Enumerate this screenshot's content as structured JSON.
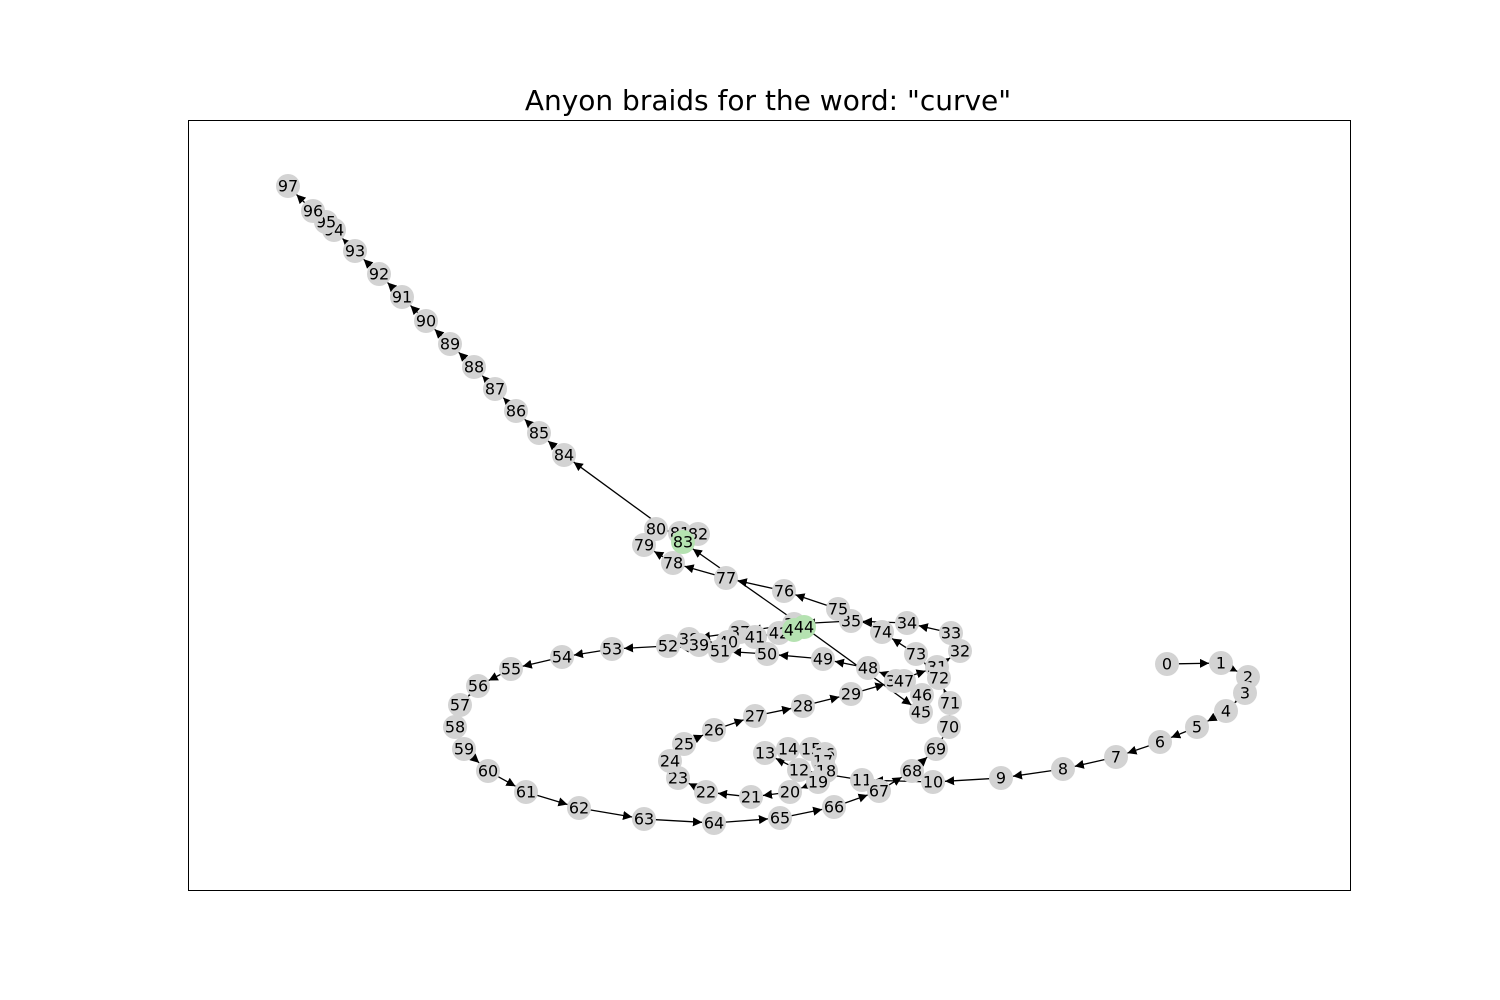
{
  "title": "Anyon braids for the word: \"curve\"",
  "colors": {
    "node": "#d3d3d3",
    "highlight": "#b5e2b1",
    "edge": "#000000",
    "frame": "#000000"
  },
  "highlighted_nodes": [
    "43",
    "44",
    "83"
  ],
  "nodes": [
    {
      "id": "0",
      "label": "0"
    },
    {
      "id": "1",
      "label": "1"
    },
    {
      "id": "2",
      "label": "2"
    },
    {
      "id": "3",
      "label": "3"
    },
    {
      "id": "4",
      "label": "4"
    },
    {
      "id": "5",
      "label": "5"
    },
    {
      "id": "6",
      "label": "6"
    },
    {
      "id": "7",
      "label": "7"
    },
    {
      "id": "8",
      "label": "8"
    },
    {
      "id": "9",
      "label": "9"
    },
    {
      "id": "10",
      "label": "10"
    },
    {
      "id": "11",
      "label": "11"
    },
    {
      "id": "12",
      "label": "12"
    },
    {
      "id": "13",
      "label": "13"
    },
    {
      "id": "14",
      "label": "14"
    },
    {
      "id": "15",
      "label": "15"
    },
    {
      "id": "16",
      "label": "16"
    },
    {
      "id": "17",
      "label": "17"
    },
    {
      "id": "18",
      "label": "18"
    },
    {
      "id": "19",
      "label": "19"
    },
    {
      "id": "20",
      "label": "20"
    },
    {
      "id": "21",
      "label": "21"
    },
    {
      "id": "22",
      "label": "22"
    },
    {
      "id": "23",
      "label": "23"
    },
    {
      "id": "24",
      "label": "24"
    },
    {
      "id": "25",
      "label": "25"
    },
    {
      "id": "26",
      "label": "26"
    },
    {
      "id": "27",
      "label": "27"
    },
    {
      "id": "28",
      "label": "28"
    },
    {
      "id": "29",
      "label": "29"
    },
    {
      "id": "30",
      "label": "30"
    },
    {
      "id": "31",
      "label": "31"
    },
    {
      "id": "32",
      "label": "32"
    },
    {
      "id": "33",
      "label": "33"
    },
    {
      "id": "34",
      "label": "34"
    },
    {
      "id": "35",
      "label": "35"
    },
    {
      "id": "36",
      "label": "36"
    },
    {
      "id": "37",
      "label": "37"
    },
    {
      "id": "38",
      "label": "38"
    },
    {
      "id": "39",
      "label": "39"
    },
    {
      "id": "40",
      "label": "40"
    },
    {
      "id": "41",
      "label": "41"
    },
    {
      "id": "42",
      "label": "42"
    },
    {
      "id": "43",
      "label": "43"
    },
    {
      "id": "44",
      "label": "44"
    },
    {
      "id": "45",
      "label": "45"
    },
    {
      "id": "46",
      "label": "46"
    },
    {
      "id": "47",
      "label": "47"
    },
    {
      "id": "48",
      "label": "48"
    },
    {
      "id": "49",
      "label": "49"
    },
    {
      "id": "50",
      "label": "50"
    },
    {
      "id": "51",
      "label": "51"
    },
    {
      "id": "52",
      "label": "52"
    },
    {
      "id": "53",
      "label": "53"
    },
    {
      "id": "54",
      "label": "54"
    },
    {
      "id": "55",
      "label": "55"
    },
    {
      "id": "56",
      "label": "56"
    },
    {
      "id": "57",
      "label": "57"
    },
    {
      "id": "58",
      "label": "58"
    },
    {
      "id": "59",
      "label": "59"
    },
    {
      "id": "60",
      "label": "60"
    },
    {
      "id": "61",
      "label": "61"
    },
    {
      "id": "62",
      "label": "62"
    },
    {
      "id": "63",
      "label": "63"
    },
    {
      "id": "64",
      "label": "64"
    },
    {
      "id": "65",
      "label": "65"
    },
    {
      "id": "66",
      "label": "66"
    },
    {
      "id": "67",
      "label": "67"
    },
    {
      "id": "68",
      "label": "68"
    },
    {
      "id": "69",
      "label": "69"
    },
    {
      "id": "70",
      "label": "70"
    },
    {
      "id": "71",
      "label": "71"
    },
    {
      "id": "72",
      "label": "72"
    },
    {
      "id": "73",
      "label": "73"
    },
    {
      "id": "74",
      "label": "74"
    },
    {
      "id": "75",
      "label": "75"
    },
    {
      "id": "76",
      "label": "76"
    },
    {
      "id": "77",
      "label": "77"
    },
    {
      "id": "78",
      "label": "78"
    },
    {
      "id": "79",
      "label": "79"
    },
    {
      "id": "80",
      "label": "80"
    },
    {
      "id": "81",
      "label": "81"
    },
    {
      "id": "82",
      "label": "82"
    },
    {
      "id": "83",
      "label": "83"
    },
    {
      "id": "84",
      "label": "84"
    },
    {
      "id": "85",
      "label": "85"
    },
    {
      "id": "86",
      "label": "86"
    },
    {
      "id": "87",
      "label": "87"
    },
    {
      "id": "88",
      "label": "88"
    },
    {
      "id": "89",
      "label": "89"
    },
    {
      "id": "90",
      "label": "90"
    },
    {
      "id": "91",
      "label": "91"
    },
    {
      "id": "92",
      "label": "92"
    },
    {
      "id": "93",
      "label": "93"
    },
    {
      "id": "94",
      "label": "94"
    },
    {
      "id": "95",
      "label": "95"
    },
    {
      "id": "96",
      "label": "96"
    },
    {
      "id": "97",
      "label": "97"
    }
  ],
  "edges": [
    [
      "0",
      "1"
    ],
    [
      "1",
      "2"
    ],
    [
      "2",
      "3"
    ],
    [
      "3",
      "4"
    ],
    [
      "4",
      "5"
    ],
    [
      "5",
      "6"
    ],
    [
      "6",
      "7"
    ],
    [
      "7",
      "8"
    ],
    [
      "8",
      "9"
    ],
    [
      "9",
      "10"
    ],
    [
      "10",
      "11"
    ],
    [
      "11",
      "12"
    ],
    [
      "12",
      "13"
    ],
    [
      "13",
      "14"
    ],
    [
      "14",
      "15"
    ],
    [
      "15",
      "16"
    ],
    [
      "16",
      "17"
    ],
    [
      "17",
      "18"
    ],
    [
      "18",
      "19"
    ],
    [
      "19",
      "20"
    ],
    [
      "20",
      "21"
    ],
    [
      "21",
      "22"
    ],
    [
      "22",
      "23"
    ],
    [
      "23",
      "24"
    ],
    [
      "24",
      "25"
    ],
    [
      "25",
      "26"
    ],
    [
      "26",
      "27"
    ],
    [
      "27",
      "28"
    ],
    [
      "28",
      "29"
    ],
    [
      "29",
      "30"
    ],
    [
      "30",
      "31"
    ],
    [
      "31",
      "32"
    ],
    [
      "32",
      "33"
    ],
    [
      "33",
      "34"
    ],
    [
      "34",
      "35"
    ],
    [
      "35",
      "36"
    ],
    [
      "36",
      "37"
    ],
    [
      "37",
      "38"
    ],
    [
      "38",
      "39"
    ],
    [
      "39",
      "40"
    ],
    [
      "40",
      "41"
    ],
    [
      "41",
      "42"
    ],
    [
      "42",
      "43"
    ],
    [
      "43",
      "44"
    ],
    [
      "44",
      "45"
    ],
    [
      "45",
      "46"
    ],
    [
      "46",
      "47"
    ],
    [
      "47",
      "48"
    ],
    [
      "48",
      "49"
    ],
    [
      "49",
      "50"
    ],
    [
      "50",
      "51"
    ],
    [
      "51",
      "52"
    ],
    [
      "52",
      "53"
    ],
    [
      "53",
      "54"
    ],
    [
      "54",
      "55"
    ],
    [
      "55",
      "56"
    ],
    [
      "56",
      "57"
    ],
    [
      "57",
      "58"
    ],
    [
      "58",
      "59"
    ],
    [
      "59",
      "60"
    ],
    [
      "60",
      "61"
    ],
    [
      "61",
      "62"
    ],
    [
      "62",
      "63"
    ],
    [
      "63",
      "64"
    ],
    [
      "64",
      "65"
    ],
    [
      "65",
      "66"
    ],
    [
      "66",
      "67"
    ],
    [
      "67",
      "68"
    ],
    [
      "68",
      "69"
    ],
    [
      "69",
      "70"
    ],
    [
      "70",
      "71"
    ],
    [
      "71",
      "72"
    ],
    [
      "72",
      "73"
    ],
    [
      "73",
      "74"
    ],
    [
      "74",
      "75"
    ],
    [
      "75",
      "76"
    ],
    [
      "76",
      "77"
    ],
    [
      "77",
      "78"
    ],
    [
      "78",
      "79"
    ],
    [
      "79",
      "80"
    ],
    [
      "80",
      "81"
    ],
    [
      "81",
      "82"
    ],
    [
      "82",
      "83"
    ],
    [
      "83",
      "84"
    ],
    [
      "84",
      "85"
    ],
    [
      "85",
      "86"
    ],
    [
      "86",
      "87"
    ],
    [
      "87",
      "88"
    ],
    [
      "88",
      "89"
    ],
    [
      "89",
      "90"
    ],
    [
      "90",
      "91"
    ],
    [
      "91",
      "92"
    ],
    [
      "92",
      "93"
    ],
    [
      "93",
      "94"
    ],
    [
      "94",
      "95"
    ],
    [
      "95",
      "96"
    ],
    [
      "96",
      "97"
    ],
    [
      "44",
      "83"
    ]
  ]
}
